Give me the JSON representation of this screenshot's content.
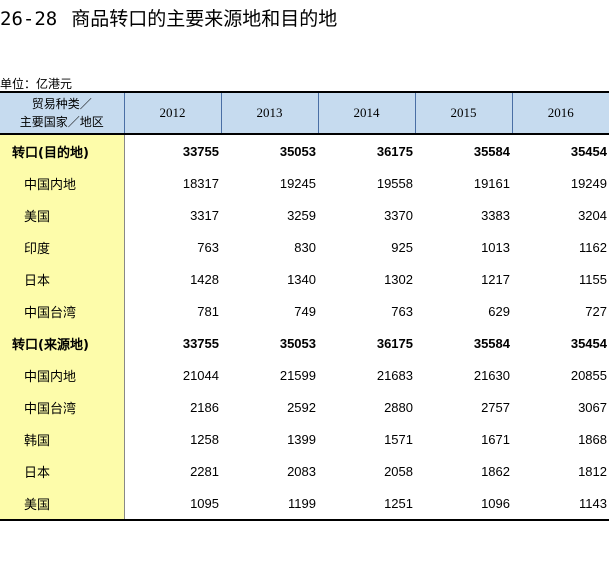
{
  "title": {
    "number": "26-28",
    "text": "商品转口的主要来源地和目的地"
  },
  "unit": "单位：亿港元",
  "header": {
    "label_line1": "贸易种类／",
    "label_line2": "主要国家／地区",
    "years": [
      "2012",
      "2013",
      "2014",
      "2015",
      "2016"
    ]
  },
  "rows": [
    {
      "label": "转口(目的地)",
      "values": [
        "33755",
        "35053",
        "36175",
        "35584",
        "35454"
      ]
    },
    {
      "label": "中国内地",
      "values": [
        "18317",
        "19245",
        "19558",
        "19161",
        "19249"
      ]
    },
    {
      "label": "美国",
      "values": [
        "3317",
        "3259",
        "3370",
        "3383",
        "3204"
      ]
    },
    {
      "label": "印度",
      "values": [
        "763",
        "830",
        "925",
        "1013",
        "1162"
      ]
    },
    {
      "label": "日本",
      "values": [
        "1428",
        "1340",
        "1302",
        "1217",
        "1155"
      ]
    },
    {
      "label": "中国台湾",
      "values": [
        "781",
        "749",
        "763",
        "629",
        "727"
      ]
    },
    {
      "label": "转口(来源地)",
      "values": [
        "33755",
        "35053",
        "36175",
        "35584",
        "35454"
      ]
    },
    {
      "label": "中国内地",
      "values": [
        "21044",
        "21599",
        "21683",
        "21630",
        "20855"
      ]
    },
    {
      "label": "中国台湾",
      "values": [
        "2186",
        "2592",
        "2880",
        "2757",
        "3067"
      ]
    },
    {
      "label": "韩国",
      "values": [
        "1258",
        "1399",
        "1571",
        "1671",
        "1868"
      ]
    },
    {
      "label": "日本",
      "values": [
        "2281",
        "2083",
        "2058",
        "1862",
        "1812"
      ]
    },
    {
      "label": "美国",
      "values": [
        "1095",
        "1199",
        "1251",
        "1096",
        "1143"
      ]
    }
  ]
}
